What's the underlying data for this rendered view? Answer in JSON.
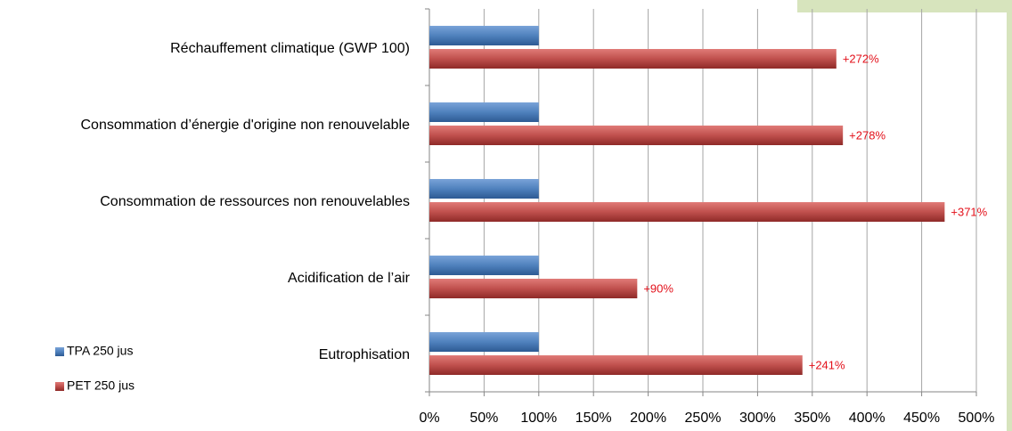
{
  "chart_data": {
    "type": "bar",
    "orientation": "horizontal",
    "categories": [
      "Réchauffement climatique (GWP 100)",
      "Consommation d’énergie d'origine non renouvelable",
      "Consommation de ressources non renouvelables",
      "Acidification de l’air",
      "Eutrophisation"
    ],
    "series": [
      {
        "name": "TPA 250 jus",
        "color": "#4f81bd",
        "values": [
          100,
          100,
          100,
          100,
          100
        ]
      },
      {
        "name": "PET 250 jus",
        "color": "#c0504d",
        "values": [
          372,
          378,
          471,
          190,
          341
        ]
      }
    ],
    "annotations": [
      "+272%",
      "+278%",
      "+371%",
      "+90%",
      "+241%"
    ],
    "xlim": [
      0,
      500
    ],
    "xticks": [
      {
        "value": 0,
        "label": "0%"
      },
      {
        "value": 50,
        "label": "50%"
      },
      {
        "value": 100,
        "label": "100%"
      },
      {
        "value": 150,
        "label": "150%"
      },
      {
        "value": 200,
        "label": "200%"
      },
      {
        "value": 250,
        "label": "250%"
      },
      {
        "value": 300,
        "label": "300%"
      },
      {
        "value": 350,
        "label": "350%"
      },
      {
        "value": 400,
        "label": "400%"
      },
      {
        "value": 450,
        "label": "450%"
      },
      {
        "value": 500,
        "label": "500%"
      }
    ],
    "grid": true
  }
}
